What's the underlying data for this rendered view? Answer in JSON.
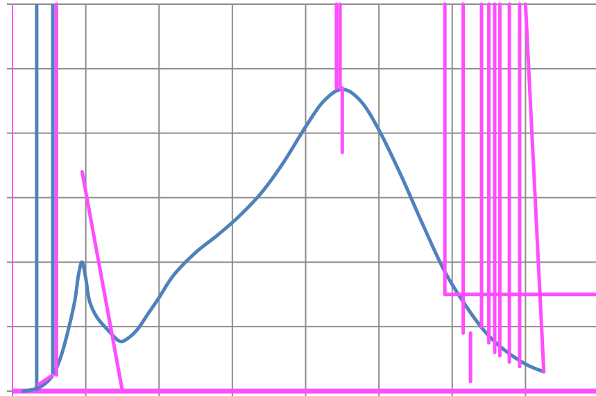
{
  "chart_data": {
    "type": "line",
    "title": "",
    "xlabel": "",
    "ylabel": "",
    "xlim": [
      0,
      8
    ],
    "ylim": [
      0,
      6
    ],
    "x_ticks": [
      0,
      1,
      2,
      3,
      4,
      5,
      6,
      7,
      8
    ],
    "y_ticks": [
      0,
      1,
      2,
      3,
      4,
      5,
      6
    ],
    "grid": true,
    "legend": "none",
    "series": [
      {
        "color": "#4f81bd",
        "points": [
          [
            0.15,
            0.0
          ],
          [
            0.33,
            0.04
          ],
          [
            0.45,
            0.12
          ],
          [
            0.55,
            0.25
          ],
          [
            0.65,
            0.5
          ],
          [
            0.75,
            0.9
          ],
          [
            0.85,
            1.4
          ],
          [
            0.9,
            1.8
          ],
          [
            0.95,
            2.0
          ],
          [
            1.0,
            1.75
          ],
          [
            1.05,
            1.4
          ],
          [
            1.15,
            1.15
          ],
          [
            1.3,
            0.95
          ],
          [
            1.45,
            0.78
          ],
          [
            1.55,
            0.8
          ],
          [
            1.7,
            0.95
          ],
          [
            1.85,
            1.2
          ],
          [
            2.0,
            1.45
          ],
          [
            2.2,
            1.8
          ],
          [
            2.5,
            2.15
          ],
          [
            2.8,
            2.42
          ],
          [
            3.1,
            2.72
          ],
          [
            3.4,
            3.08
          ],
          [
            3.7,
            3.55
          ],
          [
            4.0,
            4.1
          ],
          [
            4.25,
            4.5
          ],
          [
            4.5,
            4.68
          ],
          [
            4.75,
            4.5
          ],
          [
            5.0,
            4.05
          ],
          [
            5.3,
            3.35
          ],
          [
            5.6,
            2.58
          ],
          [
            5.9,
            1.85
          ],
          [
            6.2,
            1.3
          ],
          [
            6.45,
            0.92
          ],
          [
            6.7,
            0.65
          ],
          [
            7.0,
            0.42
          ],
          [
            7.25,
            0.3
          ]
        ],
        "verticals": [
          {
            "x": 0.33,
            "y_from": 0.0,
            "y_to": 6.0
          },
          {
            "x": 0.55,
            "y_from": 0.25,
            "y_to": 6.0
          }
        ]
      },
      {
        "color": "#ff4dff",
        "baseline_y": 0.0,
        "segments": [
          [
            [
              0.0,
              0.0
            ],
            [
              0.0,
              6.0
            ]
          ],
          [
            [
              0.35,
              0.1
            ],
            [
              0.55,
              0.25
            ]
          ],
          [
            [
              0.6,
              0.25
            ],
            [
              0.6,
              6.0
            ]
          ],
          [
            [
              0.95,
              3.4
            ],
            [
              1.5,
              0.0
            ]
          ],
          [
            [
              4.42,
              6.0
            ],
            [
              4.42,
              4.7
            ]
          ],
          [
            [
              4.47,
              6.0
            ],
            [
              4.47,
              4.7
            ]
          ],
          [
            [
              4.5,
              4.7
            ],
            [
              4.5,
              3.7
            ]
          ],
          [
            [
              5.9,
              6.0
            ],
            [
              5.9,
              1.5
            ]
          ],
          [
            [
              5.9,
              1.5
            ],
            [
              6.0,
              1.5
            ]
          ],
          [
            [
              6.0,
              1.5
            ],
            [
              8.0,
              1.5
            ]
          ],
          [
            [
              6.15,
              6.0
            ],
            [
              6.15,
              0.9
            ]
          ],
          [
            [
              6.25,
              0.9
            ],
            [
              6.25,
              0.15
            ]
          ],
          [
            [
              6.4,
              6.0
            ],
            [
              6.4,
              1.0
            ]
          ],
          [
            [
              6.5,
              6.0
            ],
            [
              6.5,
              0.75
            ]
          ],
          [
            [
              6.58,
              6.0
            ],
            [
              6.58,
              0.6
            ]
          ],
          [
            [
              6.65,
              6.0
            ],
            [
              6.65,
              0.55
            ]
          ],
          [
            [
              6.78,
              6.0
            ],
            [
              6.78,
              0.45
            ]
          ],
          [
            [
              6.92,
              6.0
            ],
            [
              6.92,
              0.38
            ]
          ],
          [
            [
              7.0,
              6.0
            ],
            [
              7.25,
              0.3
            ]
          ]
        ]
      }
    ]
  }
}
